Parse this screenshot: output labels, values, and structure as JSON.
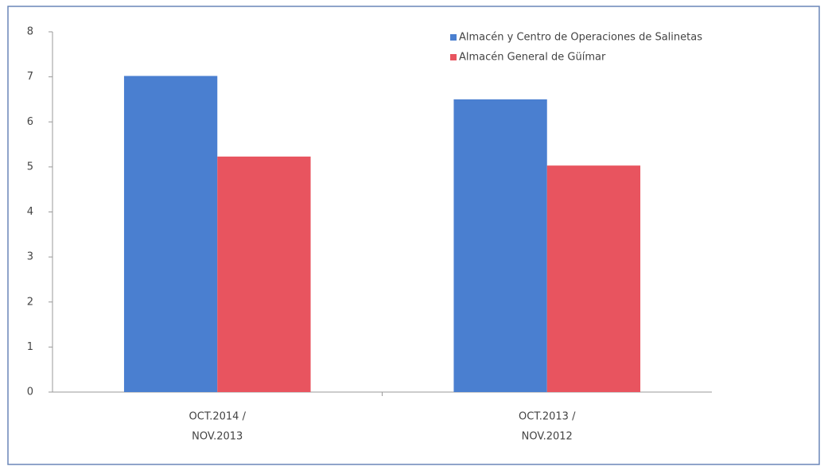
{
  "chart_data": {
    "type": "bar",
    "categories": [
      [
        "OCT.2014 /",
        "NOV.2013"
      ],
      [
        "OCT.2013 /",
        "NOV.2012"
      ]
    ],
    "series": [
      {
        "name": "Almacén y Centro de Operaciones de Salinetas",
        "color": "#4a7fd0",
        "values": [
          7.02,
          6.5
        ]
      },
      {
        "name": "Almacén General de Güímar",
        "color": "#e8545f",
        "values": [
          5.23,
          5.03
        ]
      }
    ],
    "ylim": [
      0,
      8
    ],
    "yticks": [
      0,
      1,
      2,
      3,
      4,
      5,
      6,
      7,
      8
    ],
    "grid": false,
    "legend": "top-right"
  }
}
